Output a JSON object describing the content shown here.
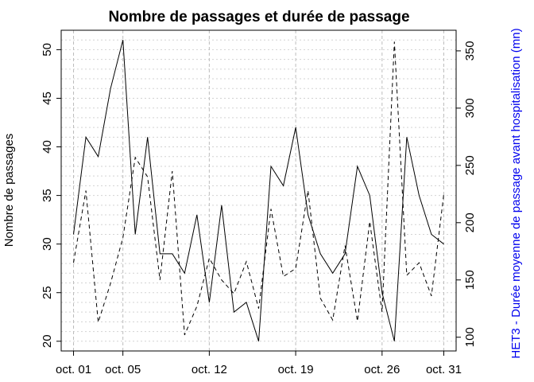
{
  "chart_data": {
    "type": "line",
    "title": "Nombre de passages et durée de passage",
    "ylabel": "Nombre de passages",
    "y2label": "HET3 - Durée moyenne de passage avant hospitalisation (mn)",
    "y2label_color": "#0000ee",
    "x_tick_labels": [
      "oct. 01",
      "oct. 05",
      "oct. 12",
      "oct. 19",
      "oct. 26",
      "oct. 31"
    ],
    "x_tick_days": [
      1,
      5,
      12,
      19,
      26,
      31
    ],
    "y_ticks": [
      20,
      25,
      30,
      35,
      40,
      45,
      50
    ],
    "y2_ticks": [
      100,
      150,
      200,
      250,
      300,
      350
    ],
    "ylim": [
      19,
      52
    ],
    "y2lim": [
      88,
      368
    ],
    "xlim": [
      0,
      32
    ],
    "grid": true,
    "x": [
      1,
      2,
      3,
      4,
      5,
      6,
      7,
      8,
      9,
      10,
      11,
      12,
      13,
      14,
      15,
      16,
      17,
      18,
      19,
      20,
      21,
      22,
      23,
      24,
      25,
      26,
      27,
      28,
      29,
      30,
      31
    ],
    "series": [
      {
        "axis": "left",
        "line_style": "solid",
        "color": "#000000",
        "values": [
          31,
          41,
          39,
          46,
          51,
          31,
          41,
          29,
          29,
          27,
          33,
          24,
          34,
          23,
          24,
          20,
          38,
          36,
          42,
          33,
          29,
          27,
          29,
          38,
          35,
          25,
          20,
          41,
          35,
          31,
          30
        ]
      },
      {
        "axis": "right",
        "line_style": "dashed",
        "color": "#000000",
        "values": [
          165,
          228,
          113,
          147,
          187,
          257,
          240,
          150,
          245,
          102,
          127,
          169,
          150,
          138,
          166,
          125,
          212,
          153,
          160,
          228,
          134,
          115,
          180,
          114,
          201,
          122,
          358,
          154,
          165,
          136,
          225
        ]
      }
    ]
  }
}
